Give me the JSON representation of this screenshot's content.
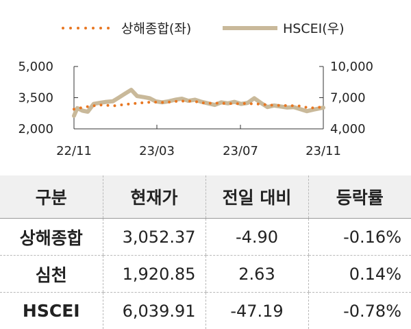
{
  "chart_data": {
    "type": "line",
    "legend": {
      "placement": "top-center"
    },
    "x_ticks": [
      "22/11",
      "23/03",
      "23/07",
      "23/11"
    ],
    "x_range": [
      "2022-11-01",
      "2023-11-15"
    ],
    "y_left": {
      "ticks": [
        "2,000",
        "3,500",
        "5,000"
      ],
      "range": [
        2000,
        5000
      ]
    },
    "y_right": {
      "ticks": [
        "4,000",
        "7,000",
        "10,000"
      ],
      "range": [
        4000,
        10000
      ]
    },
    "series": [
      {
        "name": "상해종합(좌)",
        "axis": "left",
        "style": "dotted",
        "color": "#e87722",
        "points": [
          [
            "2022-11-01",
            2950
          ],
          [
            "2022-11-20",
            3060
          ],
          [
            "2022-12-10",
            3150
          ],
          [
            "2023-01-01",
            3110
          ],
          [
            "2023-01-20",
            3180
          ],
          [
            "2023-02-10",
            3250
          ],
          [
            "2023-03-01",
            3290
          ],
          [
            "2023-03-20",
            3270
          ],
          [
            "2023-04-10",
            3340
          ],
          [
            "2023-05-01",
            3330
          ],
          [
            "2023-05-20",
            3230
          ],
          [
            "2023-06-10",
            3240
          ],
          [
            "2023-07-01",
            3210
          ],
          [
            "2023-07-20",
            3220
          ],
          [
            "2023-08-10",
            3190
          ],
          [
            "2023-09-01",
            3130
          ],
          [
            "2023-09-20",
            3120
          ],
          [
            "2023-10-10",
            3100
          ],
          [
            "2023-10-25",
            3000
          ],
          [
            "2023-11-15",
            3052
          ]
        ]
      },
      {
        "name": "HSCEI(우)",
        "axis": "right",
        "style": "solid",
        "color": "#c9b99a",
        "points": [
          [
            "2022-11-01",
            5250
          ],
          [
            "2022-11-06",
            6000
          ],
          [
            "2022-11-14",
            5750
          ],
          [
            "2022-11-22",
            5650
          ],
          [
            "2022-12-01",
            6400
          ],
          [
            "2022-12-10",
            6500
          ],
          [
            "2022-12-20",
            6600
          ],
          [
            "2022-12-30",
            6650
          ],
          [
            "2023-01-08",
            7000
          ],
          [
            "2023-01-18",
            7400
          ],
          [
            "2023-01-27",
            7750
          ],
          [
            "2023-02-05",
            7150
          ],
          [
            "2023-02-15",
            7050
          ],
          [
            "2023-02-24",
            6950
          ],
          [
            "2023-03-05",
            6650
          ],
          [
            "2023-03-15",
            6550
          ],
          [
            "2023-03-25",
            6650
          ],
          [
            "2023-04-04",
            6800
          ],
          [
            "2023-04-14",
            6900
          ],
          [
            "2023-04-24",
            6700
          ],
          [
            "2023-05-04",
            6800
          ],
          [
            "2023-05-14",
            6600
          ],
          [
            "2023-05-24",
            6450
          ],
          [
            "2023-06-03",
            6300
          ],
          [
            "2023-06-13",
            6550
          ],
          [
            "2023-06-23",
            6450
          ],
          [
            "2023-07-03",
            6600
          ],
          [
            "2023-07-13",
            6400
          ],
          [
            "2023-07-23",
            6500
          ],
          [
            "2023-08-02",
            6950
          ],
          [
            "2023-08-12",
            6500
          ],
          [
            "2023-08-22",
            6100
          ],
          [
            "2023-09-01",
            6250
          ],
          [
            "2023-09-11",
            6150
          ],
          [
            "2023-09-21",
            6050
          ],
          [
            "2023-10-01",
            6100
          ],
          [
            "2023-10-11",
            5900
          ],
          [
            "2023-10-21",
            5700
          ],
          [
            "2023-10-31",
            5850
          ],
          [
            "2023-11-15",
            6040
          ]
        ]
      }
    ]
  },
  "table": {
    "headers": [
      "구분",
      "현재가",
      "전일 대비",
      "등락률"
    ],
    "rows": [
      {
        "name": "상해종합",
        "price": "3,052.37",
        "change": "-4.90",
        "rate": "-0.16%"
      },
      {
        "name": "심천",
        "price": "1,920.85",
        "change": "2.63",
        "rate": "0.14%"
      },
      {
        "name": "HSCEI",
        "price": "6,039.91",
        "change": "-47.19",
        "rate": "-0.78%"
      }
    ]
  }
}
